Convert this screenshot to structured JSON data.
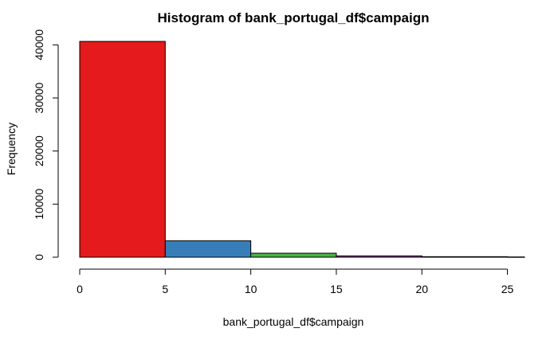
{
  "chart_data": {
    "type": "bar",
    "title": "Histogram of bank_portugal_df$campaign",
    "xlabel": "bank_portugal_df$campaign",
    "ylabel": "Frequency",
    "bins": [
      {
        "start": 0,
        "end": 5,
        "value": 40650,
        "color": "#e41a1c"
      },
      {
        "start": 5,
        "end": 10,
        "value": 3100,
        "color": "#377eb8"
      },
      {
        "start": 10,
        "end": 15,
        "value": 750,
        "color": "#4daf4a"
      },
      {
        "start": 15,
        "end": 20,
        "value": 250,
        "color": "#984ea3"
      },
      {
        "start": 20,
        "end": 25,
        "value": 100,
        "color": "#ff7f00"
      },
      {
        "start": 25,
        "end": 30,
        "value": 50,
        "color": "#ffff33"
      }
    ],
    "x_ticks": [
      "0",
      "5",
      "10",
      "15",
      "20",
      "25"
    ],
    "y_ticks": [
      "0",
      "10000",
      "20000",
      "30000",
      "40000"
    ],
    "xlim": [
      0,
      26
    ],
    "ylim": [
      0,
      40650
    ],
    "grid": false,
    "legend": "none"
  }
}
